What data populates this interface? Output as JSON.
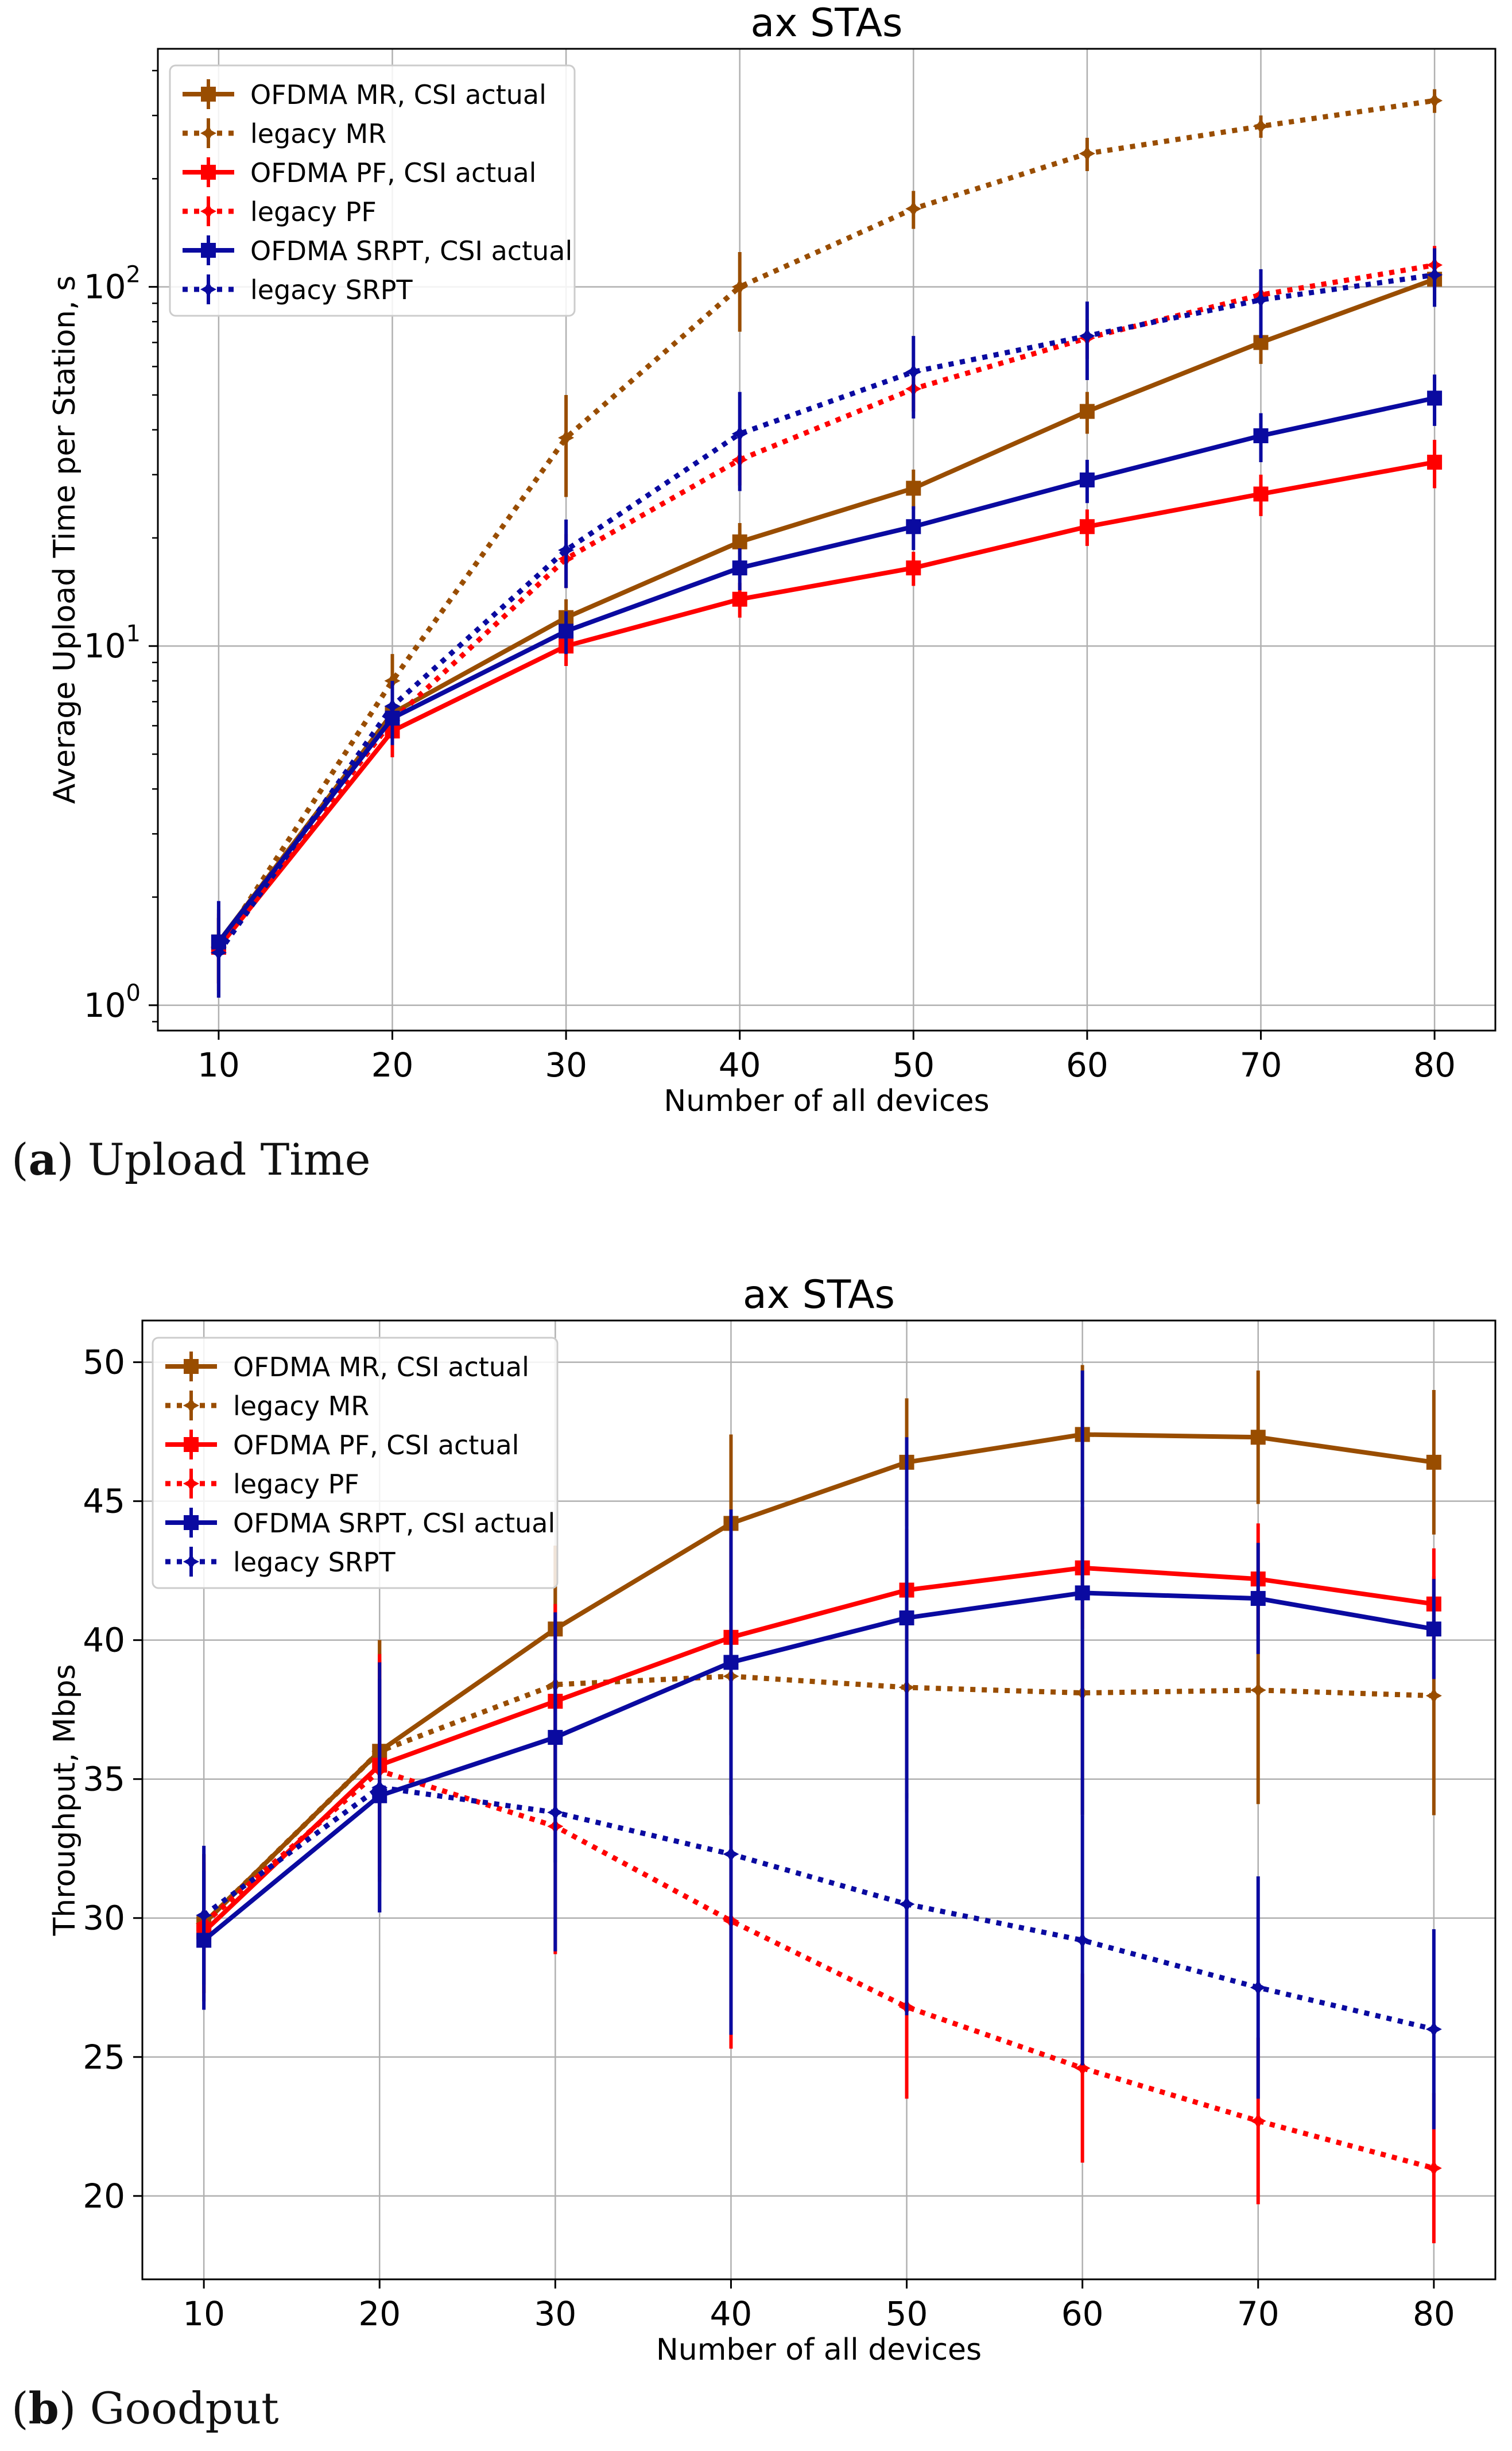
{
  "chart_data": [
    {
      "type": "line",
      "scale": "log",
      "title": "ax STAs",
      "xlabel": "Number of all devices",
      "ylabel": "Average Upload Time per Station, s",
      "x": [
        10,
        20,
        30,
        40,
        50,
        60,
        70,
        80
      ],
      "xlim": [
        6.5,
        83.5
      ],
      "ylim": [
        0.85,
        460
      ],
      "xticks": [
        "10",
        "20",
        "30",
        "40",
        "50",
        "60",
        "70",
        "80"
      ],
      "ytick_values": [
        1,
        10,
        100
      ],
      "ytick_bases": [
        "10",
        "10",
        "10"
      ],
      "ytick_exps": [
        "0",
        "1",
        "2"
      ],
      "grid": true,
      "legend_position": "upper-left",
      "series": [
        {
          "name": "OFDMA MR, CSI actual",
          "style": "solid",
          "marker": "square",
          "color": "#994D00",
          "values": [
            1.5,
            6.5,
            12,
            19.5,
            27.5,
            45,
            70,
            105
          ],
          "err": [
            0.35,
            0.9,
            1.5,
            2.5,
            3.5,
            6,
            9,
            13
          ]
        },
        {
          "name": "legacy MR",
          "style": "dotted",
          "marker": "star",
          "color": "#994D00",
          "values": [
            1.45,
            8,
            38,
            100,
            165,
            235,
            280,
            330
          ],
          "err": [
            0.3,
            1.5,
            12,
            25,
            20,
            25,
            20,
            25
          ]
        },
        {
          "name": "OFDMA PF, CSI actual",
          "style": "solid",
          "marker": "square",
          "color": "#FF0000",
          "values": [
            1.45,
            5.8,
            10,
            13.5,
            16.5,
            21.5,
            26.5,
            32.5
          ],
          "err": [
            0.35,
            0.9,
            1.2,
            1.5,
            1.8,
            2.5,
            3.5,
            5
          ]
        },
        {
          "name": "legacy PF",
          "style": "dotted",
          "marker": "star",
          "color": "#FF0000",
          "values": [
            1.45,
            6.2,
            17.5,
            33,
            52,
            72,
            95,
            115
          ],
          "err": [
            0.3,
            1.0,
            3,
            5,
            7,
            9,
            12,
            15
          ]
        },
        {
          "name": "OFDMA SRPT, CSI actual",
          "style": "solid",
          "marker": "square",
          "color": "#0A0AA0",
          "values": [
            1.5,
            6.3,
            11,
            16.5,
            21.5,
            29,
            38.5,
            49
          ],
          "err": [
            0.45,
            1.0,
            1.5,
            2.2,
            3,
            4,
            6,
            8
          ]
        },
        {
          "name": "legacy SRPT",
          "style": "dotted",
          "marker": "star",
          "color": "#0A0AA0",
          "values": [
            1.4,
            6.8,
            18.5,
            39,
            58,
            73,
            92,
            108
          ],
          "err": [
            0.35,
            1.2,
            4,
            12,
            15,
            18,
            20,
            20
          ]
        }
      ]
    },
    {
      "type": "line",
      "scale": "linear",
      "title": "ax STAs",
      "xlabel": "Number of all devices",
      "ylabel": "Throughput, Mbps",
      "x": [
        10,
        20,
        30,
        40,
        50,
        60,
        70,
        80
      ],
      "xlim": [
        6.5,
        83.5
      ],
      "ylim": [
        17,
        51.5
      ],
      "xticks": [
        "10",
        "20",
        "30",
        "40",
        "50",
        "60",
        "70",
        "80"
      ],
      "ytick_values": [
        20,
        25,
        30,
        35,
        40,
        45,
        50
      ],
      "yticks": [
        "20",
        "25",
        "30",
        "35",
        "40",
        "45",
        "50"
      ],
      "grid": true,
      "legend_position": "upper-left",
      "series": [
        {
          "name": "OFDMA MR, CSI actual",
          "style": "solid",
          "marker": "square",
          "color": "#994D00",
          "values": [
            29.8,
            36.0,
            40.4,
            44.2,
            46.4,
            47.4,
            47.3,
            46.4
          ],
          "err": [
            2.5,
            4.0,
            3.0,
            3.2,
            2.3,
            2.5,
            2.4,
            2.6
          ]
        },
        {
          "name": "legacy MR",
          "style": "dotted",
          "marker": "star",
          "color": "#994D00",
          "values": [
            29.8,
            36.0,
            38.4,
            38.7,
            38.3,
            38.1,
            38.2,
            38.0
          ],
          "err": [
            2.5,
            4.0,
            5.0,
            5.0,
            4.5,
            4.4,
            4.1,
            4.3
          ]
        },
        {
          "name": "OFDMA PF, CSI actual",
          "style": "solid",
          "marker": "square",
          "color": "#FF0000",
          "values": [
            29.5,
            35.5,
            37.8,
            40.1,
            41.8,
            42.6,
            42.2,
            41.3
          ],
          "err": [
            2.5,
            4.0,
            3.5,
            3.5,
            2.2,
            2.2,
            2.0,
            2.0
          ]
        },
        {
          "name": "legacy PF",
          "style": "dotted",
          "marker": "star",
          "color": "#FF0000",
          "values": [
            29.8,
            35.3,
            33.3,
            29.9,
            26.8,
            24.6,
            22.7,
            21.0
          ],
          "err": [
            2.5,
            4.0,
            4.6,
            4.6,
            3.3,
            3.4,
            3.0,
            2.7
          ]
        },
        {
          "name": "OFDMA SRPT, CSI actual",
          "style": "solid",
          "marker": "square",
          "color": "#0A0AA0",
          "values": [
            29.2,
            34.4,
            36.5,
            39.2,
            40.8,
            41.7,
            41.5,
            40.4
          ],
          "err": [
            2.5,
            4.2,
            4.5,
            5.5,
            6.5,
            8.0,
            2.0,
            1.8
          ]
        },
        {
          "name": "legacy SRPT",
          "style": "dotted",
          "marker": "star",
          "color": "#0A0AA0",
          "values": [
            30.1,
            34.7,
            33.8,
            32.3,
            30.5,
            29.2,
            27.5,
            26.0
          ],
          "err": [
            2.5,
            4.5,
            5.0,
            6.5,
            4.0,
            4.5,
            4.0,
            3.6
          ]
        }
      ]
    }
  ],
  "captions": {
    "a_label": "a",
    "a_text": " Upload Time",
    "b_label": "b",
    "b_text": " Goodput"
  }
}
